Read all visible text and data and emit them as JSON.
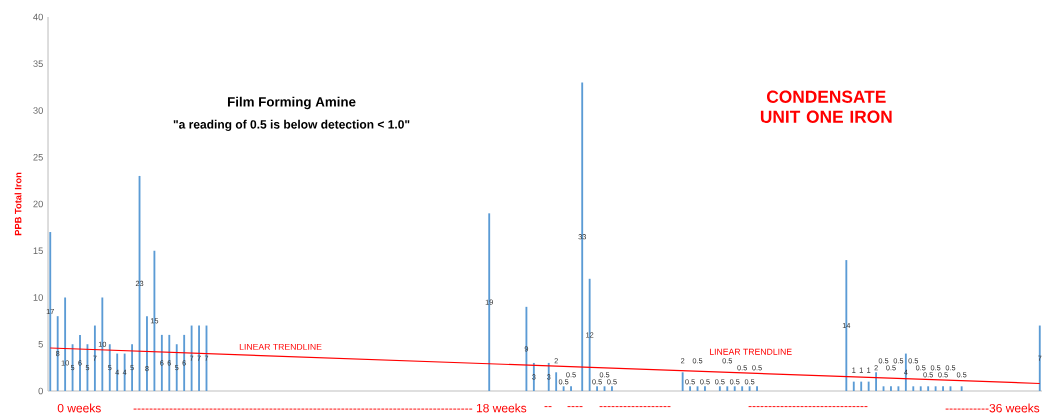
{
  "chart_data": {
    "type": "bar",
    "title": "CONDENSATE UNIT ONE IRON",
    "ylabel": "PPB Total Iron",
    "categories": [
      null,
      null,
      null,
      null,
      null,
      null,
      null,
      null,
      null,
      null,
      null,
      null,
      null,
      null,
      null,
      null,
      null,
      null,
      null,
      null,
      null,
      null,
      null,
      null,
      null,
      null,
      null,
      null,
      null,
      null,
      null,
      null,
      null,
      null,
      null,
      null,
      null,
      null,
      null,
      null,
      null,
      null,
      null,
      null,
      null,
      null,
      null,
      null,
      null,
      null,
      null,
      null,
      null,
      null,
      null,
      null,
      null,
      null,
      null,
      null,
      null,
      null,
      null,
      null,
      null,
      null,
      null,
      null,
      null,
      null,
      null,
      null,
      null,
      null,
      null,
      null,
      null,
      null,
      null,
      null,
      null,
      null,
      null,
      null,
      null,
      null,
      null,
      null,
      null,
      null,
      null,
      null,
      null,
      null,
      null,
      null,
      null,
      null,
      null,
      null,
      null,
      null,
      null,
      null,
      null,
      null,
      null,
      null,
      null,
      null,
      null,
      null,
      null,
      null,
      null,
      null,
      null,
      null,
      null,
      null,
      null,
      null,
      null,
      null,
      null,
      null,
      null,
      null,
      null,
      null,
      null,
      null,
      null,
      null,
      null,
      null,
      null,
      null,
      null,
      null,
      null,
      null,
      null,
      null,
      null,
      null,
      null,
      null,
      null,
      null,
      null,
      null,
      null,
      null,
      null,
      null,
      null,
      null,
      null,
      null,
      null,
      null,
      null,
      null,
      null,
      null,
      null,
      null,
      null,
      null,
      null,
      null,
      null,
      null,
      null,
      null,
      null,
      null,
      null,
      null,
      null,
      null,
      null,
      null,
      null,
      null,
      null,
      null,
      null,
      null,
      null,
      null,
      null,
      null,
      null,
      null,
      null,
      null,
      null,
      null,
      null,
      null,
      null,
      null,
      null,
      null,
      null,
      null,
      null,
      null,
      null,
      null,
      null,
      null,
      null,
      null,
      null,
      null,
      null,
      null,
      null,
      null,
      null,
      null,
      null,
      null,
      null,
      null,
      null,
      null,
      null,
      null,
      null,
      null,
      null,
      null,
      null,
      null,
      null,
      null,
      null,
      null,
      null,
      null,
      null,
      null,
      null,
      null,
      null,
      null,
      null,
      null,
      null,
      null,
      null,
      null,
      null,
      null,
      null,
      null,
      null,
      null,
      null,
      null,
      null,
      null,
      null
    ],
    "series": [
      {
        "color": "#5b9bd5",
        "values": [
          17,
          null,
          8,
          null,
          10,
          null,
          5,
          null,
          6,
          null,
          5,
          null,
          7,
          null,
          10,
          null,
          5,
          null,
          4,
          null,
          4,
          null,
          5,
          null,
          23,
          null,
          8,
          null,
          15,
          null,
          6,
          null,
          6,
          null,
          5,
          null,
          6,
          null,
          7,
          null,
          7,
          null,
          7,
          null,
          null,
          null,
          null,
          null,
          null,
          null,
          null,
          null,
          null,
          null,
          null,
          null,
          null,
          null,
          null,
          null,
          null,
          null,
          null,
          null,
          null,
          null,
          null,
          null,
          null,
          null,
          null,
          null,
          null,
          null,
          null,
          null,
          null,
          null,
          null,
          null,
          null,
          null,
          null,
          null,
          null,
          null,
          null,
          null,
          null,
          null,
          null,
          null,
          null,
          null,
          null,
          null,
          null,
          null,
          null,
          null,
          null,
          null,
          null,
          null,
          null,
          null,
          null,
          null,
          null,
          null,
          null,
          null,
          null,
          null,
          null,
          null,
          null,
          null,
          19,
          null,
          null,
          null,
          null,
          null,
          null,
          null,
          null,
          null,
          9,
          null,
          3,
          null,
          null,
          null,
          3,
          null,
          2,
          null,
          0.5,
          null,
          0.5,
          null,
          null,
          33,
          null,
          12,
          null,
          0.5,
          null,
          0.5,
          null,
          0.5,
          null,
          null,
          null,
          null,
          null,
          null,
          null,
          null,
          null,
          null,
          null,
          null,
          null,
          null,
          null,
          null,
          null,
          null,
          2,
          null,
          0.5,
          null,
          0.5,
          null,
          0.5,
          null,
          null,
          null,
          0.5,
          null,
          0.5,
          null,
          0.5,
          null,
          0.5,
          null,
          0.5,
          null,
          0.5,
          null,
          null,
          null,
          null,
          null,
          null,
          null,
          null,
          null,
          null,
          null,
          null,
          null,
          null,
          null,
          null,
          null,
          null,
          null,
          null,
          null,
          null,
          null,
          14,
          null,
          1,
          null,
          1,
          null,
          1,
          null,
          2,
          null,
          0.5,
          null,
          0.5,
          null,
          0.5,
          null,
          4,
          null,
          0.5,
          null,
          0.5,
          null,
          0.5,
          null,
          0.5,
          null,
          0.5,
          null,
          0.5,
          null,
          null,
          0.5,
          null,
          null,
          null,
          null,
          null,
          null,
          null,
          null,
          null,
          null,
          null,
          null,
          null,
          null,
          null,
          null,
          null,
          null,
          null,
          null,
          7
        ],
        "value_labels": [
          "17",
          null,
          "8",
          null,
          "10",
          null,
          "5",
          null,
          "6",
          null,
          "5",
          null,
          "7",
          null,
          "10",
          null,
          "5",
          null,
          "4",
          null,
          "4",
          null,
          "5",
          null,
          "23",
          null,
          "8",
          null,
          "15",
          null,
          "6",
          null,
          "6",
          null,
          "5",
          null,
          "6",
          null,
          "7",
          null,
          "7",
          null,
          "7",
          null,
          null,
          null,
          null,
          null,
          null,
          null,
          null,
          null,
          null,
          null,
          null,
          null,
          null,
          null,
          null,
          null,
          null,
          null,
          null,
          null,
          null,
          null,
          null,
          null,
          null,
          null,
          null,
          null,
          null,
          null,
          null,
          null,
          null,
          null,
          null,
          null,
          null,
          null,
          null,
          null,
          null,
          null,
          null,
          null,
          null,
          null,
          null,
          null,
          null,
          null,
          null,
          null,
          null,
          null,
          null,
          null,
          null,
          null,
          null,
          null,
          null,
          null,
          null,
          null,
          null,
          null,
          null,
          null,
          null,
          null,
          null,
          null,
          null,
          null,
          "19",
          null,
          null,
          null,
          null,
          null,
          null,
          null,
          null,
          null,
          "9",
          null,
          "3",
          null,
          null,
          null,
          "3",
          null,
          "2",
          null,
          "0.5",
          null,
          "0.5",
          null,
          null,
          "33",
          null,
          "12",
          null,
          "0.5",
          null,
          "0.5",
          null,
          "0.5",
          null,
          null,
          null,
          null,
          null,
          null,
          null,
          null,
          null,
          null,
          null,
          null,
          null,
          null,
          null,
          null,
          null,
          null,
          "2",
          null,
          "0.5",
          null,
          "0.5",
          null,
          "0.5",
          null,
          null,
          null,
          "0.5",
          null,
          "0.5",
          null,
          "0.5",
          null,
          "0.5",
          null,
          "0.5",
          null,
          "0.5",
          null,
          null,
          null,
          null,
          null,
          null,
          null,
          null,
          null,
          null,
          null,
          null,
          null,
          null,
          null,
          null,
          null,
          null,
          null,
          null,
          null,
          null,
          null,
          "14",
          null,
          "1",
          null,
          "1",
          null,
          "1",
          null,
          "2",
          null,
          "0.5",
          null,
          "0.5",
          null,
          "0.5",
          null,
          "4",
          null,
          "0.5",
          null,
          "0.5",
          null,
          "0.5",
          null,
          "0.5",
          null,
          "0.5",
          null,
          "0.5",
          null,
          null,
          "0.5",
          null,
          null,
          null,
          null,
          null,
          null,
          null,
          null,
          null,
          null,
          null,
          null,
          null,
          null,
          null,
          null,
          null,
          null,
          null,
          null,
          "7"
        ]
      },
      {
        "type": "line",
        "color": "#ff0000",
        "values": [
          4.6,
          null,
          null,
          null,
          null,
          null,
          null,
          null,
          null,
          null,
          null,
          null,
          null,
          null,
          null,
          null,
          null,
          null,
          null,
          null,
          null,
          null,
          null,
          null,
          null,
          null,
          null,
          null,
          null,
          null,
          null,
          null,
          null,
          null,
          null,
          null,
          null,
          null,
          null,
          null,
          null,
          null,
          null,
          null,
          null,
          null,
          null,
          null,
          null,
          null,
          null,
          null,
          null,
          null,
          null,
          null,
          null,
          null,
          null,
          null,
          null,
          null,
          null,
          null,
          null,
          null,
          null,
          null,
          null,
          null,
          null,
          null,
          null,
          null,
          null,
          null,
          null,
          null,
          null,
          null,
          null,
          null,
          null,
          null,
          null,
          null,
          null,
          null,
          null,
          null,
          null,
          null,
          null,
          null,
          null,
          null,
          null,
          null,
          null,
          null,
          null,
          null,
          null,
          null,
          null,
          null,
          null,
          null,
          null,
          null,
          null,
          null,
          null,
          null,
          null,
          null,
          null,
          null,
          null,
          null,
          null,
          null,
          null,
          null,
          null,
          null,
          null,
          null,
          null,
          null,
          null,
          null,
          null,
          null,
          null,
          null,
          null,
          null,
          null,
          null,
          null,
          null,
          null,
          null,
          null,
          null,
          null,
          null,
          null,
          null,
          null,
          null,
          null,
          null,
          null,
          null,
          null,
          null,
          null,
          null,
          null,
          null,
          null,
          null,
          null,
          null,
          null,
          null,
          null,
          null,
          null,
          null,
          null,
          null,
          null,
          null,
          null,
          null,
          null,
          null,
          null,
          null,
          null,
          null,
          null,
          null,
          null,
          null,
          null,
          null,
          null,
          null,
          null,
          null,
          null,
          null,
          null,
          null,
          null,
          null,
          null,
          null,
          null,
          null,
          null,
          null,
          null,
          null,
          null,
          null,
          null,
          null,
          null,
          null,
          null,
          null,
          null,
          null,
          null,
          null,
          null,
          null,
          null,
          null,
          null,
          null,
          null,
          null,
          null,
          null,
          null,
          null,
          null,
          null,
          null,
          null,
          null,
          null,
          null,
          null,
          null,
          null,
          null,
          null,
          null,
          null,
          null,
          null,
          null,
          null,
          null,
          null,
          null,
          null,
          null,
          null,
          null,
          null,
          null,
          null,
          null,
          null,
          null,
          null,
          null,
          null,
          0.8
        ]
      }
    ],
    "ylim": [
      0,
      40
    ],
    "yticks": [
      0,
      5,
      10,
      15,
      20,
      25,
      30,
      35,
      40
    ],
    "annotations": [
      "Film Forming Amine",
      "\"a reading of 0.5 is below detection < 1.0\"",
      "LINEAR TRENDLINE",
      "LINEAR TRENDLINE",
      "0 weeks",
      "------------------------------------------------------------------------------------- 18 weeks",
      "--",
      "----",
      "------------------",
      "------------------------------",
      "-----------36 weeks"
    ]
  }
}
